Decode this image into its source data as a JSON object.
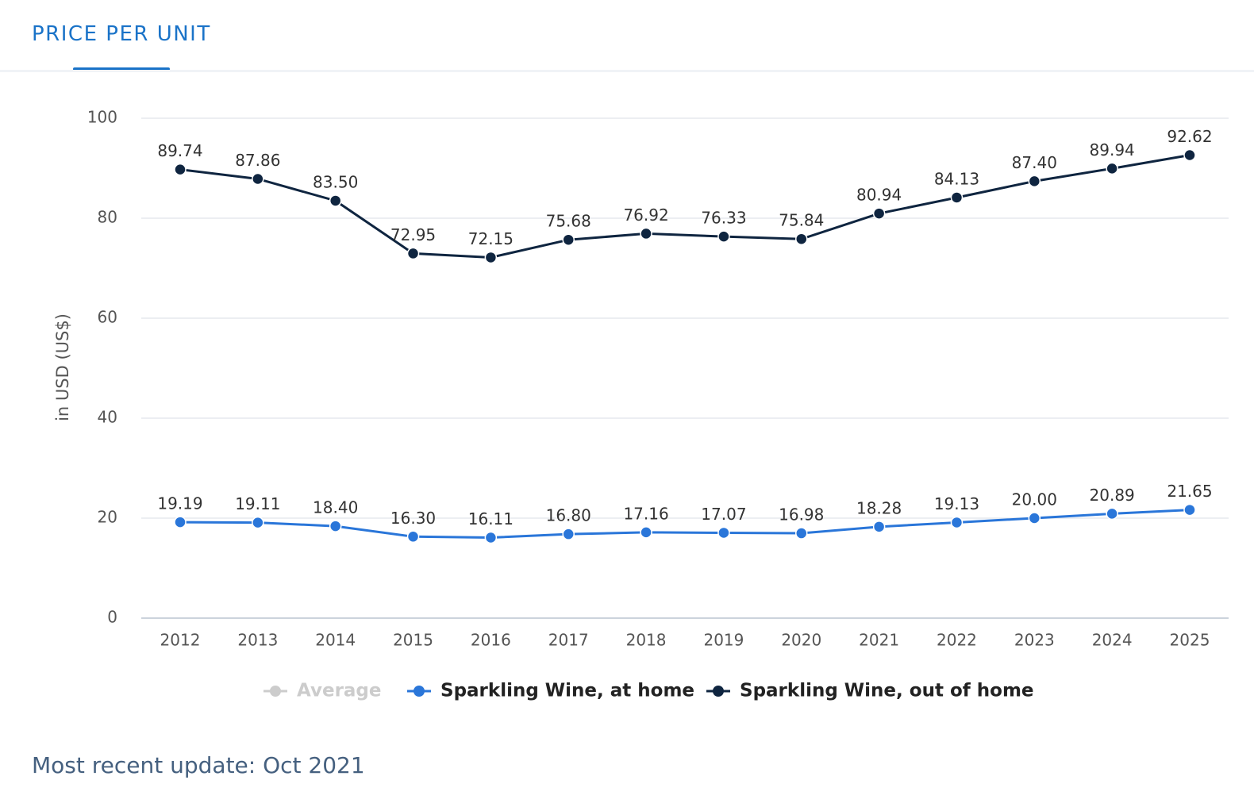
{
  "tab": "PRICE PER UNIT",
  "footer": "Most recent update: Oct 2021",
  "chart_data": {
    "type": "line",
    "y_label": "in USD (US$)",
    "categories": [
      "2012",
      "2013",
      "2014",
      "2015",
      "2016",
      "2017",
      "2018",
      "2019",
      "2020",
      "2021",
      "2022",
      "2023",
      "2024",
      "2025"
    ],
    "ylim": [
      0,
      100
    ],
    "yticks": [
      0,
      20,
      40,
      60,
      80,
      100
    ],
    "grid": true,
    "legend": "bottom",
    "series": [
      {
        "name": "Average",
        "color": "#cccccc",
        "hidden": true
      },
      {
        "name": "Sparkling Wine, at home",
        "color": "#2a76d9",
        "values": [
          19.19,
          19.11,
          18.4,
          16.3,
          16.11,
          16.8,
          17.16,
          17.07,
          16.98,
          18.28,
          19.13,
          20.0,
          20.89,
          21.65
        ],
        "value_labels": [
          "19.19",
          "19.11",
          "18.40",
          "16.30",
          "16.11",
          "16.80",
          "17.16",
          "17.07",
          "16.98",
          "18.28",
          "19.13",
          "20.00",
          "20.89",
          "21.65"
        ]
      },
      {
        "name": "Sparkling Wine, out of home",
        "color": "#0f2540",
        "values": [
          89.74,
          87.86,
          83.5,
          72.95,
          72.15,
          75.68,
          76.92,
          76.33,
          75.84,
          80.94,
          84.13,
          87.4,
          89.94,
          92.62
        ],
        "value_labels": [
          "89.74",
          "87.86",
          "83.50",
          "72.95",
          "72.15",
          "75.68",
          "76.92",
          "76.33",
          "75.84",
          "80.94",
          "84.13",
          "87.40",
          "89.94",
          "92.62"
        ]
      }
    ]
  }
}
